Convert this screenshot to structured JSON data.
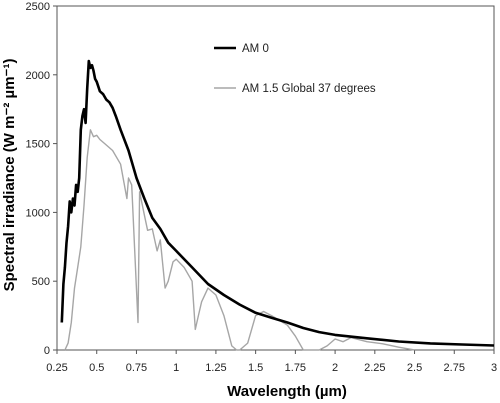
{
  "chart_data": {
    "type": "line",
    "xlabel": "Wavelength (µm)",
    "ylabel": "Spectral irradiance (W m⁻² µm⁻¹)",
    "xlim": [
      0.25,
      3
    ],
    "ylim": [
      0,
      2500
    ],
    "x_ticks": [
      "0.25",
      "0.5",
      "0.75",
      "1",
      "1.25",
      "1.5",
      "1.75",
      "2",
      "2.25",
      "2.5",
      "2.75",
      "3"
    ],
    "y_ticks": [
      "0",
      "500",
      "1000",
      "1500",
      "2000",
      "2500"
    ],
    "grid": false,
    "legend_position": "top-right",
    "series": [
      {
        "name": "AM 0",
        "color": "#000000",
        "x": [
          0.28,
          0.29,
          0.3,
          0.31,
          0.32,
          0.33,
          0.34,
          0.35,
          0.36,
          0.37,
          0.38,
          0.39,
          0.4,
          0.41,
          0.42,
          0.43,
          0.44,
          0.45,
          0.46,
          0.47,
          0.48,
          0.49,
          0.5,
          0.52,
          0.54,
          0.56,
          0.58,
          0.6,
          0.62,
          0.65,
          0.7,
          0.75,
          0.8,
          0.85,
          0.9,
          0.95,
          1.0,
          1.1,
          1.2,
          1.3,
          1.4,
          1.5,
          1.6,
          1.7,
          1.8,
          1.9,
          2.0,
          2.2,
          2.4,
          2.6,
          2.8,
          3.0
        ],
        "values": [
          200,
          480,
          600,
          780,
          900,
          1080,
          1000,
          1100,
          1050,
          1200,
          1150,
          1250,
          1600,
          1700,
          1750,
          1650,
          1900,
          2100,
          2050,
          2070,
          2030,
          1970,
          1950,
          1880,
          1860,
          1820,
          1800,
          1760,
          1700,
          1600,
          1450,
          1250,
          1100,
          960,
          880,
          780,
          720,
          600,
          480,
          400,
          330,
          270,
          235,
          200,
          160,
          130,
          110,
          85,
          62,
          48,
          40,
          33
        ]
      },
      {
        "name": "AM 1.5 Global 37 degrees",
        "color": "#a6a6a6",
        "x": [
          0.3,
          0.32,
          0.34,
          0.36,
          0.38,
          0.4,
          0.42,
          0.44,
          0.46,
          0.48,
          0.5,
          0.52,
          0.55,
          0.6,
          0.65,
          0.69,
          0.7,
          0.72,
          0.76,
          0.77,
          0.8,
          0.82,
          0.85,
          0.88,
          0.9,
          0.93,
          0.95,
          0.98,
          1.0,
          1.05,
          1.1,
          1.12,
          1.14,
          1.16,
          1.2,
          1.25,
          1.3,
          1.35,
          1.38,
          1.4,
          1.45,
          1.5,
          1.55,
          1.6,
          1.7,
          1.75,
          1.8,
          1.85,
          1.9,
          1.95,
          2.0,
          2.05,
          2.1,
          2.2,
          2.3,
          2.4,
          2.5
        ],
        "values": [
          0,
          50,
          200,
          450,
          600,
          750,
          1050,
          1400,
          1600,
          1550,
          1560,
          1530,
          1500,
          1450,
          1350,
          1100,
          1250,
          1200,
          200,
          1150,
          980,
          870,
          880,
          720,
          800,
          450,
          500,
          640,
          660,
          600,
          500,
          150,
          250,
          350,
          450,
          400,
          250,
          30,
          0,
          0,
          50,
          250,
          280,
          250,
          180,
          100,
          0,
          0,
          0,
          30,
          80,
          60,
          90,
          60,
          45,
          20,
          0
        ]
      }
    ]
  }
}
